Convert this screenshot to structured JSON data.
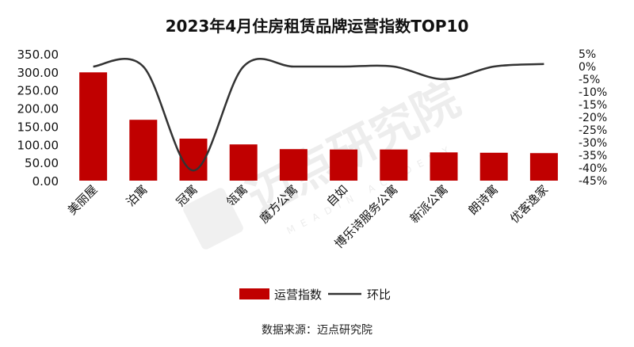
{
  "chart_data": {
    "type": "bar",
    "title": "2023年4月住房租赁品牌运营指数TOP10",
    "categories": [
      "美丽屋",
      "泊寓",
      "冠寓",
      "瓴寓",
      "魔方公寓",
      "自如",
      "博乐诗服务公寓",
      "新派公寓",
      "朗诗寓",
      "优客逸家"
    ],
    "series": [
      {
        "name": "运营指数",
        "type": "bar",
        "axis": "left",
        "color": "#C00000",
        "values": [
          299,
          168,
          116,
          100,
          87,
          86,
          86,
          78,
          77,
          76
        ]
      },
      {
        "name": "环比",
        "type": "line",
        "axis": "right",
        "color": "#333333",
        "values": [
          0,
          0,
          -41,
          0,
          0,
          0,
          0,
          -5,
          0,
          1
        ]
      }
    ],
    "y_left": {
      "min": 0,
      "max": 350,
      "step": 50,
      "ticks": [
        "0.00",
        "50.00",
        "100.00",
        "150.00",
        "200.00",
        "250.00",
        "300.00",
        "350.00"
      ]
    },
    "y_right": {
      "min": -45,
      "max": 5,
      "step": 5,
      "ticks": [
        "5%",
        "0%",
        "-5%",
        "-10%",
        "-15%",
        "-20%",
        "-25%",
        "-30%",
        "-35%",
        "-40%",
        "-45%"
      ]
    },
    "grid": false,
    "legend_position": "bottom"
  },
  "source": "数据来源：迈点研究院",
  "watermark": {
    "text": "迈点研究院",
    "subtext": "MEADIN ACADEMY"
  }
}
